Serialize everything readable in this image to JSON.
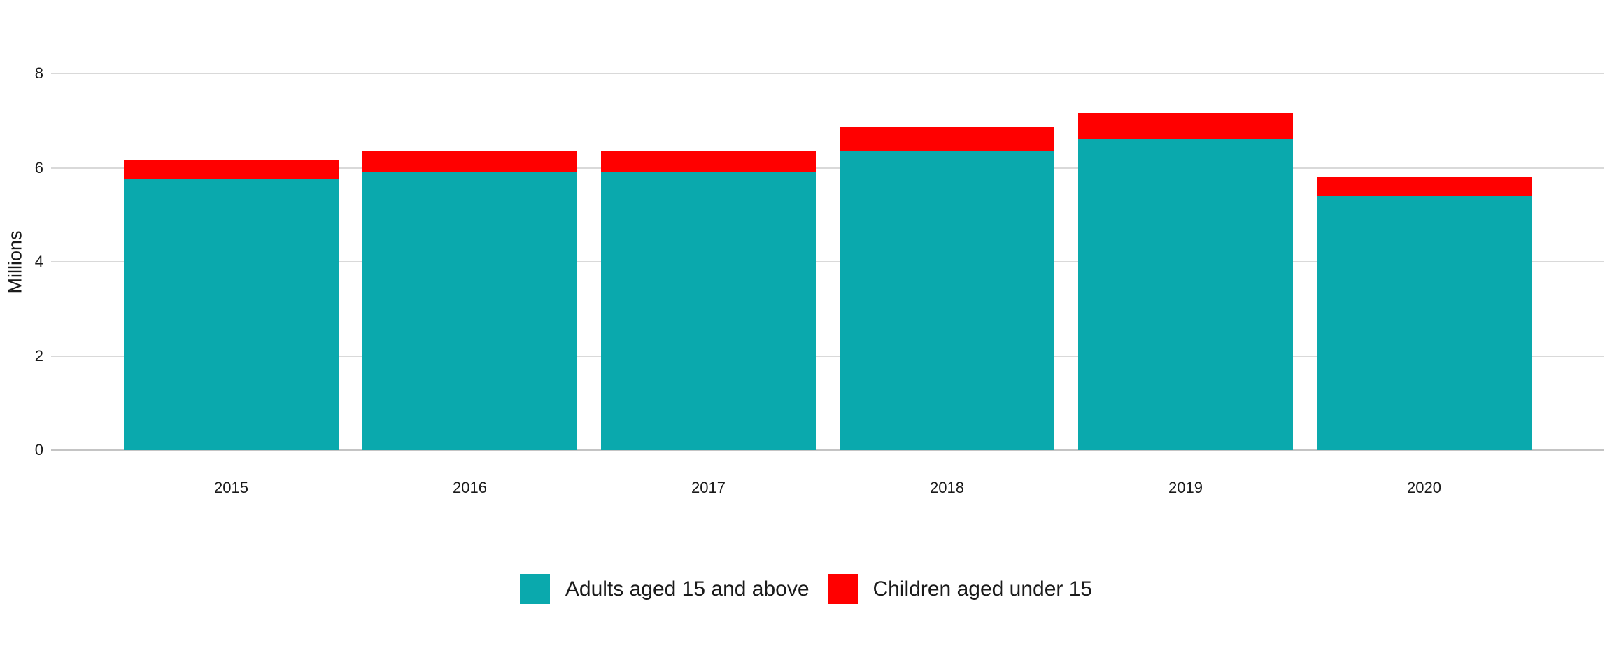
{
  "chart_data": {
    "type": "bar",
    "stacked": true,
    "title": "",
    "xlabel": "",
    "ylabel": "Millions",
    "categories": [
      "2015",
      "2016",
      "2017",
      "2018",
      "2019",
      "2020"
    ],
    "series": [
      {
        "name": "Adults aged 15 and above",
        "color": "#0aa9ad",
        "values": [
          5.75,
          5.9,
          5.9,
          6.35,
          6.6,
          5.4
        ]
      },
      {
        "name": "Children aged under 15",
        "color": "#ff0000",
        "values": [
          0.4,
          0.45,
          0.45,
          0.5,
          0.55,
          0.4
        ]
      }
    ],
    "totals": [
      6.15,
      6.35,
      6.35,
      6.85,
      7.15,
      5.8
    ],
    "ylim": [
      0,
      8
    ],
    "yticks": [
      0,
      2,
      4,
      6,
      8
    ],
    "grid": true,
    "legend_position": "bottom"
  },
  "colors": {
    "gridline": "#d9d9d9",
    "axis_line": "#c4c4c4",
    "text": "#1a1a1a",
    "background": "#ffffff"
  }
}
